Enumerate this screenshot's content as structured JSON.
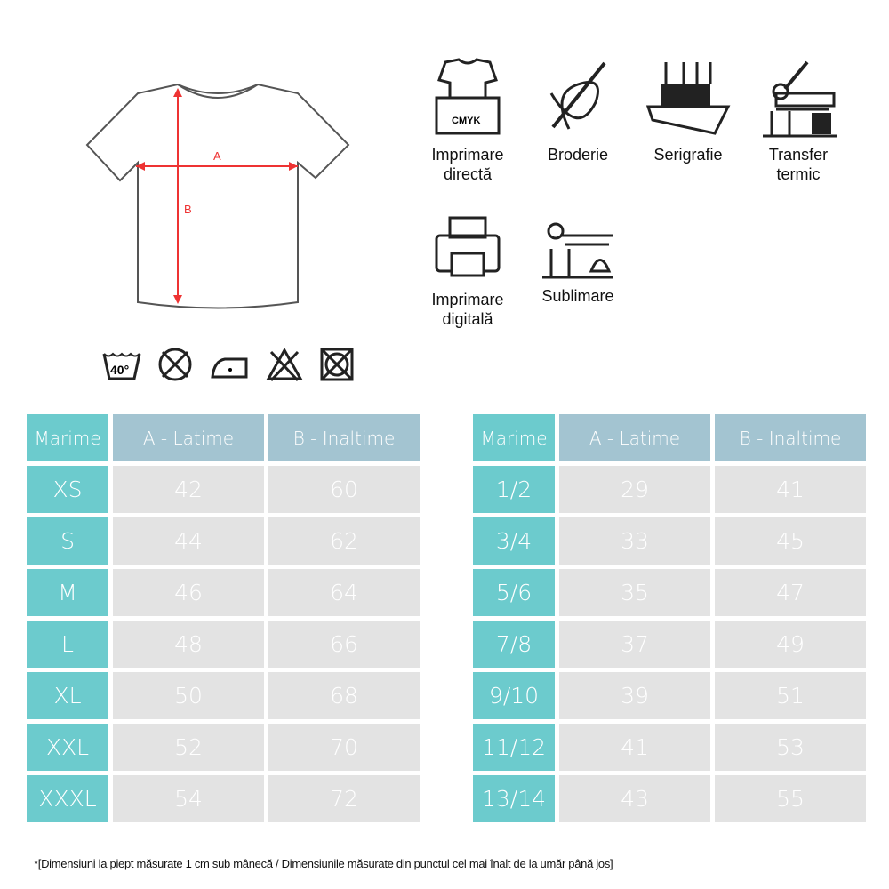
{
  "diagram": {
    "label_a": "A",
    "label_b": "B"
  },
  "care_icons": [
    "wash-40-icon",
    "no-dry-clean-icon",
    "iron-low-icon",
    "no-bleach-icon",
    "no-tumble-dry-icon"
  ],
  "care_wash_temp": "40°",
  "techniques": [
    {
      "icon": "direct-print-icon",
      "label": "Imprimare directă",
      "badge": "CMYK"
    },
    {
      "icon": "embroidery-icon",
      "label": "Broderie"
    },
    {
      "icon": "screen-print-icon",
      "label": "Serigrafie"
    },
    {
      "icon": "heat-transfer-icon",
      "label": "Transfer termic"
    },
    {
      "icon": "digital-print-icon",
      "label": "Imprimare digitală"
    },
    {
      "icon": "sublimation-icon",
      "label": "Sublimare"
    }
  ],
  "colors": {
    "size_col": "#6ccbcd",
    "header": "#a3c4d1",
    "cell": "#e3e3e3"
  },
  "adult_table": {
    "headers": [
      "Marime",
      "A - Latime",
      "B - Inaltime"
    ],
    "rows": [
      [
        "XS",
        "42",
        "60"
      ],
      [
        "S",
        "44",
        "62"
      ],
      [
        "M",
        "46",
        "64"
      ],
      [
        "L",
        "48",
        "66"
      ],
      [
        "XL",
        "50",
        "68"
      ],
      [
        "XXL",
        "52",
        "70"
      ],
      [
        "XXXL",
        "54",
        "72"
      ]
    ]
  },
  "kids_table": {
    "headers": [
      "Marime",
      "A - Latime",
      "B - Inaltime"
    ],
    "rows": [
      [
        "1/2",
        "29",
        "41"
      ],
      [
        "3/4",
        "33",
        "45"
      ],
      [
        "5/6",
        "35",
        "47"
      ],
      [
        "7/8",
        "37",
        "49"
      ],
      [
        "9/10",
        "39",
        "51"
      ],
      [
        "11/12",
        "41",
        "53"
      ],
      [
        "13/14",
        "43",
        "55"
      ]
    ]
  },
  "footnote": "*[Dimensiuni la piept măsurate 1 cm sub mânecă / Dimensiunile măsurate din punctul cel mai înalt de la umăr până jos]"
}
